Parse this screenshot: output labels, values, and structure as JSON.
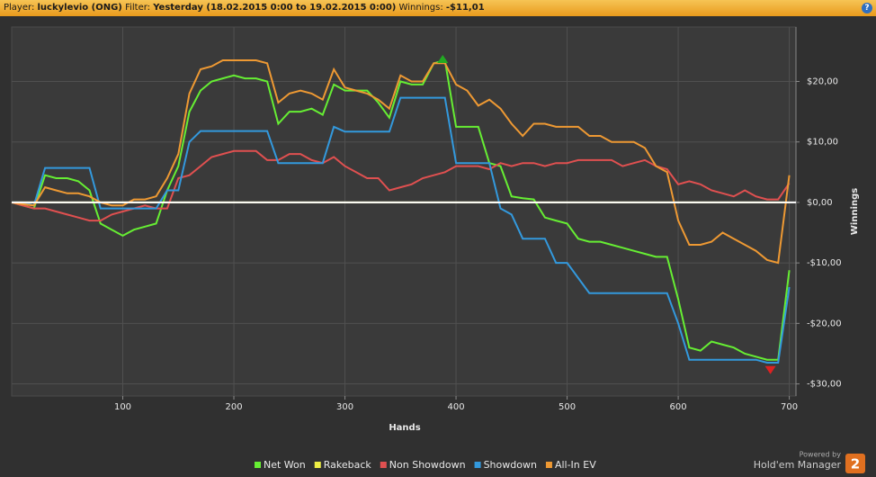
{
  "header": {
    "player_label": "Player:",
    "player": "luckylevio (ONG)",
    "filter_label": "Filter:",
    "filter": "Yesterday (18.02.2015 0:00 to 19.02.2015 0:00)",
    "winnings_label": "Winnings:",
    "winnings": "-$11,01",
    "help": "?"
  },
  "footer": {
    "powered_by": "Powered by",
    "brand": "Hold'em Manager",
    "version": "2"
  },
  "chart_data": {
    "type": "line",
    "xlabel": "Hands",
    "ylabel": "Winnings",
    "grid": true,
    "zero_line": true,
    "legend": "bottom",
    "xlim": [
      0,
      706
    ],
    "ylim": [
      -32,
      29
    ],
    "xticks": [
      100,
      200,
      300,
      400,
      500,
      600,
      700
    ],
    "yticks": [
      {
        "value": 20,
        "label": "$20,00"
      },
      {
        "value": 10,
        "label": "$10,00"
      },
      {
        "value": 0,
        "label": "$0,00"
      },
      {
        "value": -10,
        "label": "-$10,00"
      },
      {
        "value": -20,
        "label": "-$20,00"
      },
      {
        "value": -30,
        "label": "-$30,00"
      }
    ],
    "x": [
      0,
      10,
      20,
      30,
      40,
      50,
      60,
      70,
      80,
      90,
      100,
      110,
      120,
      130,
      140,
      150,
      160,
      170,
      180,
      190,
      200,
      210,
      220,
      230,
      240,
      250,
      260,
      270,
      280,
      290,
      300,
      310,
      320,
      330,
      340,
      350,
      360,
      370,
      380,
      390,
      400,
      410,
      420,
      430,
      440,
      450,
      460,
      470,
      480,
      490,
      500,
      510,
      520,
      530,
      540,
      550,
      560,
      570,
      580,
      590,
      600,
      610,
      620,
      630,
      640,
      650,
      660,
      670,
      680,
      690,
      700
    ],
    "series": [
      {
        "name": "Net Won",
        "color": "#66ee33",
        "values": [
          0,
          -0.5,
          -1,
          4.5,
          4,
          4,
          3.5,
          2,
          -3.5,
          -4.5,
          -5.5,
          -4.5,
          -4,
          -3.5,
          2,
          6,
          15,
          18.5,
          20,
          20.5,
          21,
          20.5,
          20.5,
          20,
          13,
          15,
          15,
          15.5,
          14.5,
          19.5,
          18.5,
          18.5,
          18.5,
          16.5,
          14,
          20,
          19.5,
          19.5,
          23,
          23.5,
          12.5,
          12.5,
          12.5,
          6.5,
          6,
          1,
          0.7,
          0.5,
          -2.5,
          -3,
          -3.5,
          -6,
          -6.5,
          -6.5,
          -7,
          -7.5,
          -8,
          -8.5,
          -9,
          -9,
          -16,
          -24,
          -24.5,
          -23,
          -23.5,
          -24,
          -25,
          -25.5,
          -26,
          -26,
          -11.2
        ]
      },
      {
        "name": "Rakeback",
        "color": "#eeee44",
        "values": [
          0,
          0,
          0,
          0,
          0,
          0,
          0,
          0,
          0,
          0,
          0,
          0,
          0,
          0,
          0,
          0,
          0,
          0,
          0,
          0,
          0,
          0,
          0,
          0,
          0,
          0,
          0,
          0,
          0,
          0,
          0,
          0,
          0,
          0,
          0,
          0,
          0,
          0,
          0,
          0,
          0,
          0,
          0,
          0,
          0,
          0,
          0,
          0,
          0,
          0,
          0,
          0,
          0,
          0,
          0,
          0,
          0,
          0,
          0,
          0,
          0,
          0,
          0,
          0,
          0,
          0,
          0,
          0,
          0,
          0,
          0
        ]
      },
      {
        "name": "Non Showdown",
        "color": "#e05050",
        "values": [
          0,
          -0.5,
          -1,
          -1,
          -1.5,
          -2,
          -2.5,
          -3,
          -3,
          -2,
          -1.5,
          -1,
          -0.5,
          -1,
          -1,
          4,
          4.5,
          6,
          7.5,
          8,
          8.5,
          8.5,
          8.5,
          7,
          7,
          8,
          8,
          7,
          6.5,
          7.5,
          6,
          5,
          4,
          4,
          2,
          2.5,
          3,
          4,
          4.5,
          5,
          6,
          6,
          6,
          5.5,
          6.5,
          6,
          6.5,
          6.5,
          6,
          6.5,
          6.5,
          7,
          7,
          7,
          7,
          6,
          6.5,
          7,
          6,
          5.5,
          3,
          3.5,
          3,
          2,
          1.5,
          1,
          2,
          1,
          0.5,
          0.5,
          3.2
        ]
      },
      {
        "name": "Showdown",
        "color": "#3399dd",
        "values": [
          0,
          0,
          -0.5,
          5.7,
          5.7,
          5.7,
          5.7,
          5.7,
          -1,
          -1,
          -1,
          -1,
          -1,
          -1,
          2,
          2,
          10,
          11.8,
          11.8,
          11.8,
          11.8,
          11.8,
          11.8,
          11.8,
          6.5,
          6.5,
          6.5,
          6.5,
          6.5,
          12.5,
          11.7,
          11.7,
          11.7,
          11.7,
          11.7,
          17.3,
          17.3,
          17.3,
          17.3,
          17.3,
          6.5,
          6.5,
          6.5,
          6.5,
          -1,
          -2,
          -6,
          -6,
          -6,
          -10,
          -10,
          -12.5,
          -15,
          -15,
          -15,
          -15,
          -15,
          -15,
          -15,
          -15,
          -20,
          -26,
          -26,
          -26,
          -26,
          -26,
          -26,
          -26,
          -26.5,
          -26.5,
          -14
        ]
      },
      {
        "name": "All-In EV",
        "color": "#ee9933",
        "values": [
          0,
          -0.3,
          -0.5,
          2.5,
          2,
          1.5,
          1.5,
          1,
          0,
          -0.5,
          -0.5,
          0.5,
          0.5,
          1,
          4,
          8,
          18,
          22,
          22.5,
          23.5,
          23.5,
          23.5,
          23.5,
          23,
          16.5,
          18,
          18.5,
          18,
          17,
          22,
          19,
          18.5,
          18,
          17,
          15.5,
          21,
          20,
          20,
          23,
          23,
          19.5,
          18.5,
          16,
          17,
          15.5,
          13,
          11,
          13,
          13,
          12.5,
          12.5,
          12.5,
          11,
          11,
          10,
          10,
          10,
          9,
          6,
          5,
          -3,
          -7,
          -7,
          -6.5,
          -5,
          -6,
          -7,
          -8,
          -9.5,
          -10,
          4.5
        ]
      }
    ],
    "markers": [
      {
        "x": 388,
        "y": 23.5,
        "color": "#22aa22",
        "shape": "up"
      },
      {
        "x": 683,
        "y": -27.5,
        "color": "#dd2222",
        "shape": "down"
      }
    ]
  }
}
